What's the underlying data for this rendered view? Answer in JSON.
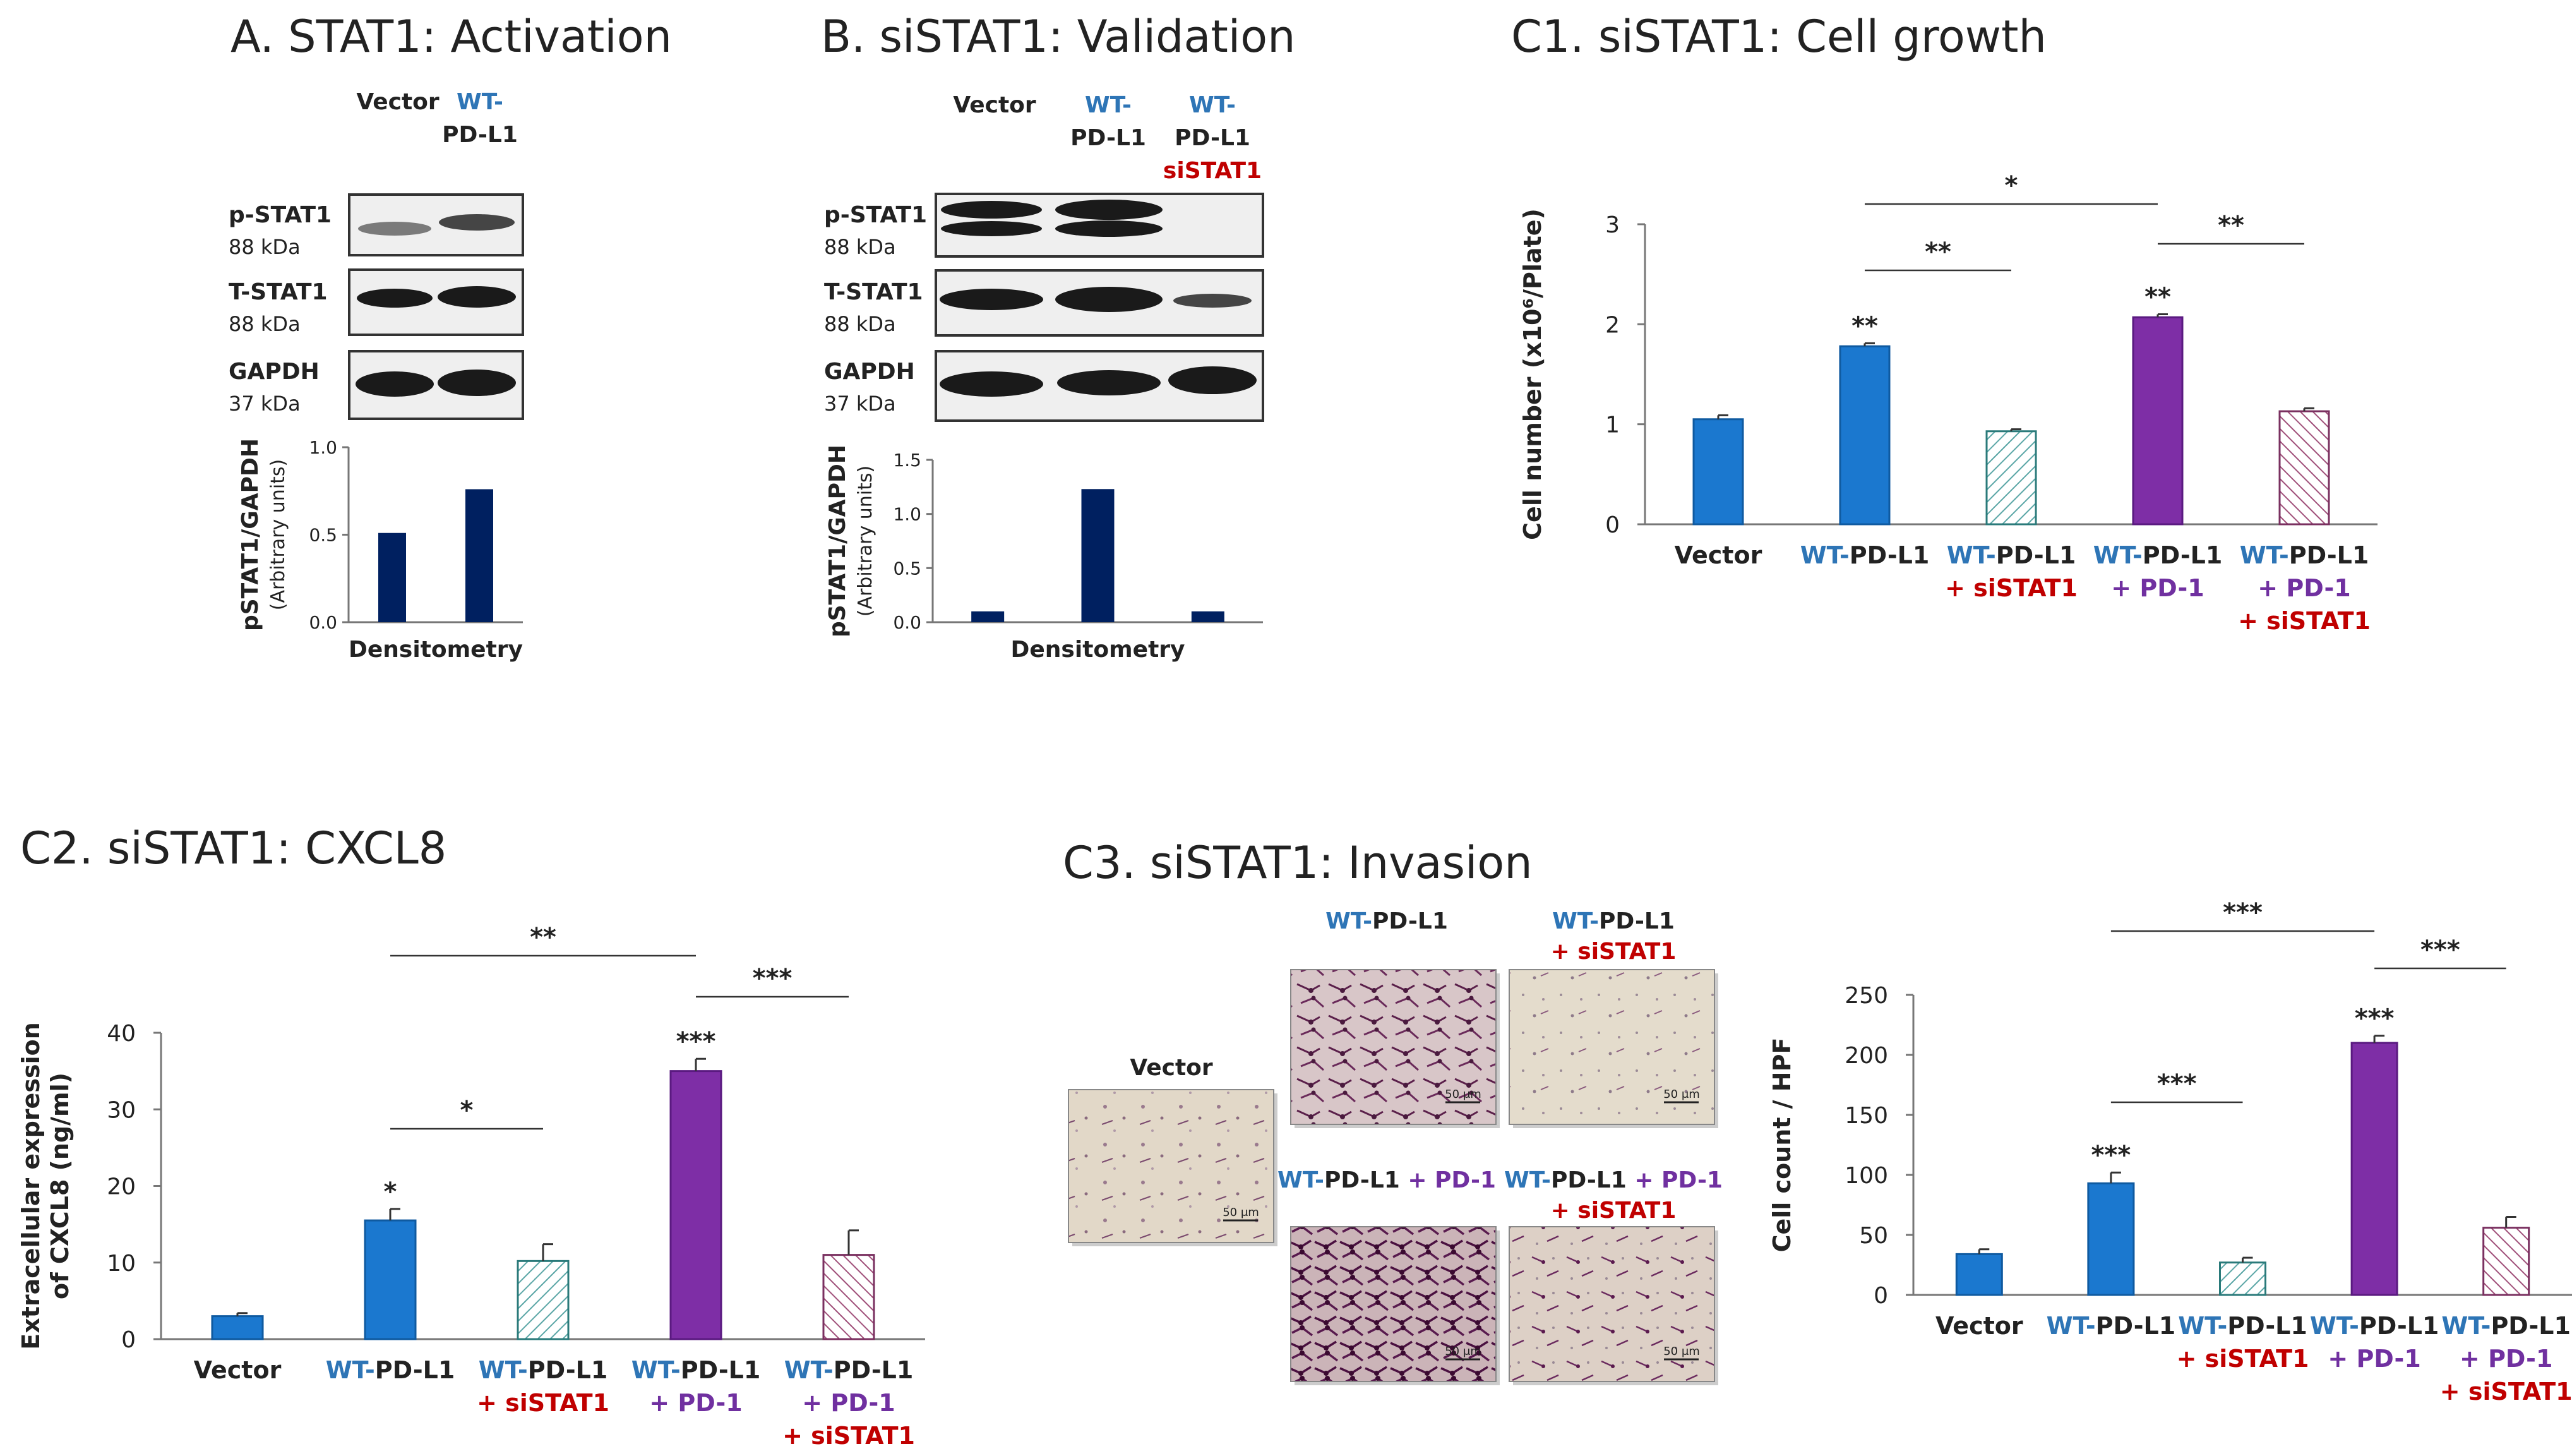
{
  "colors": {
    "blue": "#1b78cf",
    "purple": "#7e2ea6",
    "red": "#c00000",
    "teal_hatch": "#5aa6a6",
    "pink_hatch": "#a0507a",
    "navy": "#002060",
    "label_blue": "#2e75b6",
    "label_purple": "#7030a0"
  },
  "panelA": {
    "title": "A. STAT1: Activation",
    "lanes": [
      {
        "parts": [
          {
            "text": "Vector",
            "color": "dark"
          }
        ]
      },
      {
        "parts": [
          {
            "text": "WT-",
            "color": "blue"
          },
          {
            "text": "PD-L1",
            "color": "dark"
          }
        ]
      }
    ],
    "blots": [
      {
        "label": "p-STAT1",
        "kda": "88 kDa"
      },
      {
        "label": "T-STAT1",
        "kda": "88 kDa"
      },
      {
        "label": "GAPDH",
        "kda": "37 kDa"
      }
    ]
  },
  "panelB": {
    "title": "B. siSTAT1: Validation",
    "lanes": [
      {
        "parts": [
          {
            "text": "Vector",
            "color": "dark"
          }
        ]
      },
      {
        "parts": [
          {
            "text": "WT-",
            "color": "blue"
          },
          {
            "text": "PD-L1",
            "color": "dark"
          }
        ]
      },
      {
        "parts": [
          {
            "text": "WT-",
            "color": "blue"
          },
          {
            "text": "PD-L1",
            "color": "dark"
          },
          {
            "text": "siSTAT1",
            "color": "red"
          }
        ]
      }
    ],
    "blots": [
      {
        "label": "p-STAT1",
        "kda": "88 kDa"
      },
      {
        "label": "T-STAT1",
        "kda": "88 kDa"
      },
      {
        "label": "GAPDH",
        "kda": "37 kDa"
      }
    ]
  },
  "panelC3": {
    "title": "C3. siSTAT1: Invasion",
    "images": [
      {
        "parts": [
          {
            "text": "Vector",
            "color": "dark"
          }
        ],
        "scale": "50 μm"
      },
      {
        "parts": [
          {
            "text": "WT-",
            "color": "blue"
          },
          {
            "text": "PD-L1",
            "color": "dark"
          }
        ],
        "scale": "50 μm"
      },
      {
        "parts": [
          {
            "text": "WT-",
            "color": "blue"
          },
          {
            "text": "PD-L1",
            "color": "dark"
          },
          {
            "text": "+ siSTAT1",
            "color": "red",
            "newline": true
          }
        ],
        "scale": "50 μm"
      },
      {
        "parts": [
          {
            "text": "WT-",
            "color": "blue"
          },
          {
            "text": "PD-L1",
            "color": "dark"
          },
          {
            "text": " + PD-1",
            "color": "purple"
          }
        ],
        "scale": "50 μm"
      },
      {
        "parts": [
          {
            "text": "WT-",
            "color": "blue"
          },
          {
            "text": "PD-L1",
            "color": "dark"
          },
          {
            "text": " + PD-1",
            "color": "purple"
          },
          {
            "text": "+ siSTAT1",
            "color": "red",
            "newline": true
          }
        ],
        "scale": "50 μm"
      }
    ]
  },
  "chart_data": [
    {
      "id": "A-densitometry",
      "type": "bar",
      "title": "",
      "xlabel": "Densitometry",
      "ylabel": "pSTAT1/GAPDH",
      "ylabel2": "(Arbitrary units)",
      "categories": [
        "Vector",
        "WT-PD-L1"
      ],
      "values": [
        0.51,
        0.76
      ],
      "ylim": [
        0,
        1.0
      ],
      "yticks": [
        0.0,
        0.5,
        1.0
      ],
      "ytick_labels": [
        "0.0",
        "0.5",
        "1.0"
      ],
      "show_category_labels": false
    },
    {
      "id": "B-densitometry",
      "type": "bar",
      "title": "",
      "xlabel": "Densitometry",
      "ylabel": "pSTAT1/GAPDH",
      "ylabel2": "(Arbitrary units)",
      "categories": [
        "Vector",
        "WT-PD-L1",
        "WT-PD-L1 siSTAT1"
      ],
      "values": [
        0.1,
        1.23,
        0.1
      ],
      "ylim": [
        0,
        1.5
      ],
      "yticks": [
        0.0,
        0.5,
        1.0,
        1.5
      ],
      "ytick_labels": [
        "0.0",
        "0.5",
        "1.0",
        "1.5"
      ],
      "show_category_labels": false
    },
    {
      "id": "C1",
      "type": "bar",
      "title": "C1. siSTAT1: Cell growth",
      "xlabel": "",
      "ylabel": "Cell number (x10⁶/Plate)",
      "categories": [
        "Vector",
        "WT-PD-L1",
        "WT-PD-L1 + siSTAT1",
        "WT-PD-L1 + PD-1",
        "WT-PD-L1 + PD-1 + siSTAT1"
      ],
      "values": [
        1.05,
        1.78,
        0.93,
        2.07,
        1.13
      ],
      "errors": [
        0.04,
        0.03,
        0.02,
        0.03,
        0.03
      ],
      "ylim": [
        0,
        3
      ],
      "yticks": [
        0,
        1,
        2,
        3
      ],
      "ytick_labels": [
        "0",
        "1",
        "2",
        "3"
      ],
      "bar_labels": [
        "",
        "**",
        "",
        "**",
        ""
      ],
      "brackets": [
        {
          "from": 1,
          "to": 3,
          "label": "*"
        },
        {
          "from": 1,
          "to": 2,
          "label": "**"
        },
        {
          "from": 3,
          "to": 4,
          "label": "**"
        }
      ]
    },
    {
      "id": "C2",
      "type": "bar",
      "title": "C2. siSTAT1: CXCL8",
      "xlabel": "",
      "ylabel": "Extracellular expression",
      "ylabel2": "of CXCL8 (ng/ml)",
      "categories": [
        "Vector",
        "WT-PD-L1",
        "WT-PD-L1 + siSTAT1",
        "WT-PD-L1 + PD-1",
        "WT-PD-L1 + PD-1 + siSTAT1"
      ],
      "values": [
        3.0,
        15.5,
        10.2,
        35.0,
        11.0
      ],
      "errors": [
        0.4,
        1.5,
        2.2,
        1.6,
        3.2
      ],
      "ylim": [
        0,
        40
      ],
      "yticks": [
        0,
        10,
        20,
        30,
        40
      ],
      "ytick_labels": [
        "0",
        "10",
        "20",
        "30",
        "40"
      ],
      "bar_labels": [
        "",
        "*",
        "",
        "***",
        ""
      ],
      "brackets": [
        {
          "from": 1,
          "to": 3,
          "label": "**"
        },
        {
          "from": 1,
          "to": 2,
          "label": "*"
        },
        {
          "from": 3,
          "to": 4,
          "label": "***"
        }
      ]
    },
    {
      "id": "C3",
      "type": "bar",
      "title": "",
      "xlabel": "",
      "ylabel": "Cell count / HPF",
      "categories": [
        "Vector",
        "WT-PD-L1",
        "WT-PD-L1 + siSTAT1",
        "WT-PD-L1 + PD-1",
        "WT-PD-L1 + PD-1 + siSTAT1"
      ],
      "values": [
        34,
        93,
        27,
        210,
        56
      ],
      "errors": [
        4,
        9,
        4,
        6,
        9
      ],
      "ylim": [
        0,
        250
      ],
      "yticks": [
        0,
        50,
        100,
        150,
        200,
        250
      ],
      "ytick_labels": [
        "0",
        "50",
        "100",
        "150",
        "200",
        "250"
      ],
      "bar_labels": [
        "",
        "***",
        "",
        "***",
        ""
      ],
      "brackets": [
        {
          "from": 1,
          "to": 3,
          "label": "***"
        },
        {
          "from": 1,
          "to": 2,
          "label": "***"
        },
        {
          "from": 3,
          "to": 4,
          "label": "***"
        }
      ]
    }
  ],
  "category_parts": [
    [
      {
        "text": "Vector",
        "color": "dark"
      }
    ],
    [
      {
        "text": "WT-",
        "color": "blue"
      },
      {
        "text": "PD-L1",
        "color": "dark"
      }
    ],
    [
      {
        "text": "WT-",
        "color": "blue"
      },
      {
        "text": "PD-L1",
        "color": "dark"
      },
      {
        "text": "+ siSTAT1",
        "color": "red",
        "newline": true
      }
    ],
    [
      {
        "text": "WT-",
        "color": "blue"
      },
      {
        "text": "PD-L1",
        "color": "dark"
      },
      {
        "text": "+ PD-1",
        "color": "purple",
        "newline": true
      }
    ],
    [
      {
        "text": "WT-",
        "color": "blue"
      },
      {
        "text": "PD-L1",
        "color": "dark"
      },
      {
        "text": "+ PD-1",
        "color": "purple",
        "newline": true
      },
      {
        "text": "+ siSTAT1",
        "color": "red",
        "newline": true
      }
    ]
  ]
}
